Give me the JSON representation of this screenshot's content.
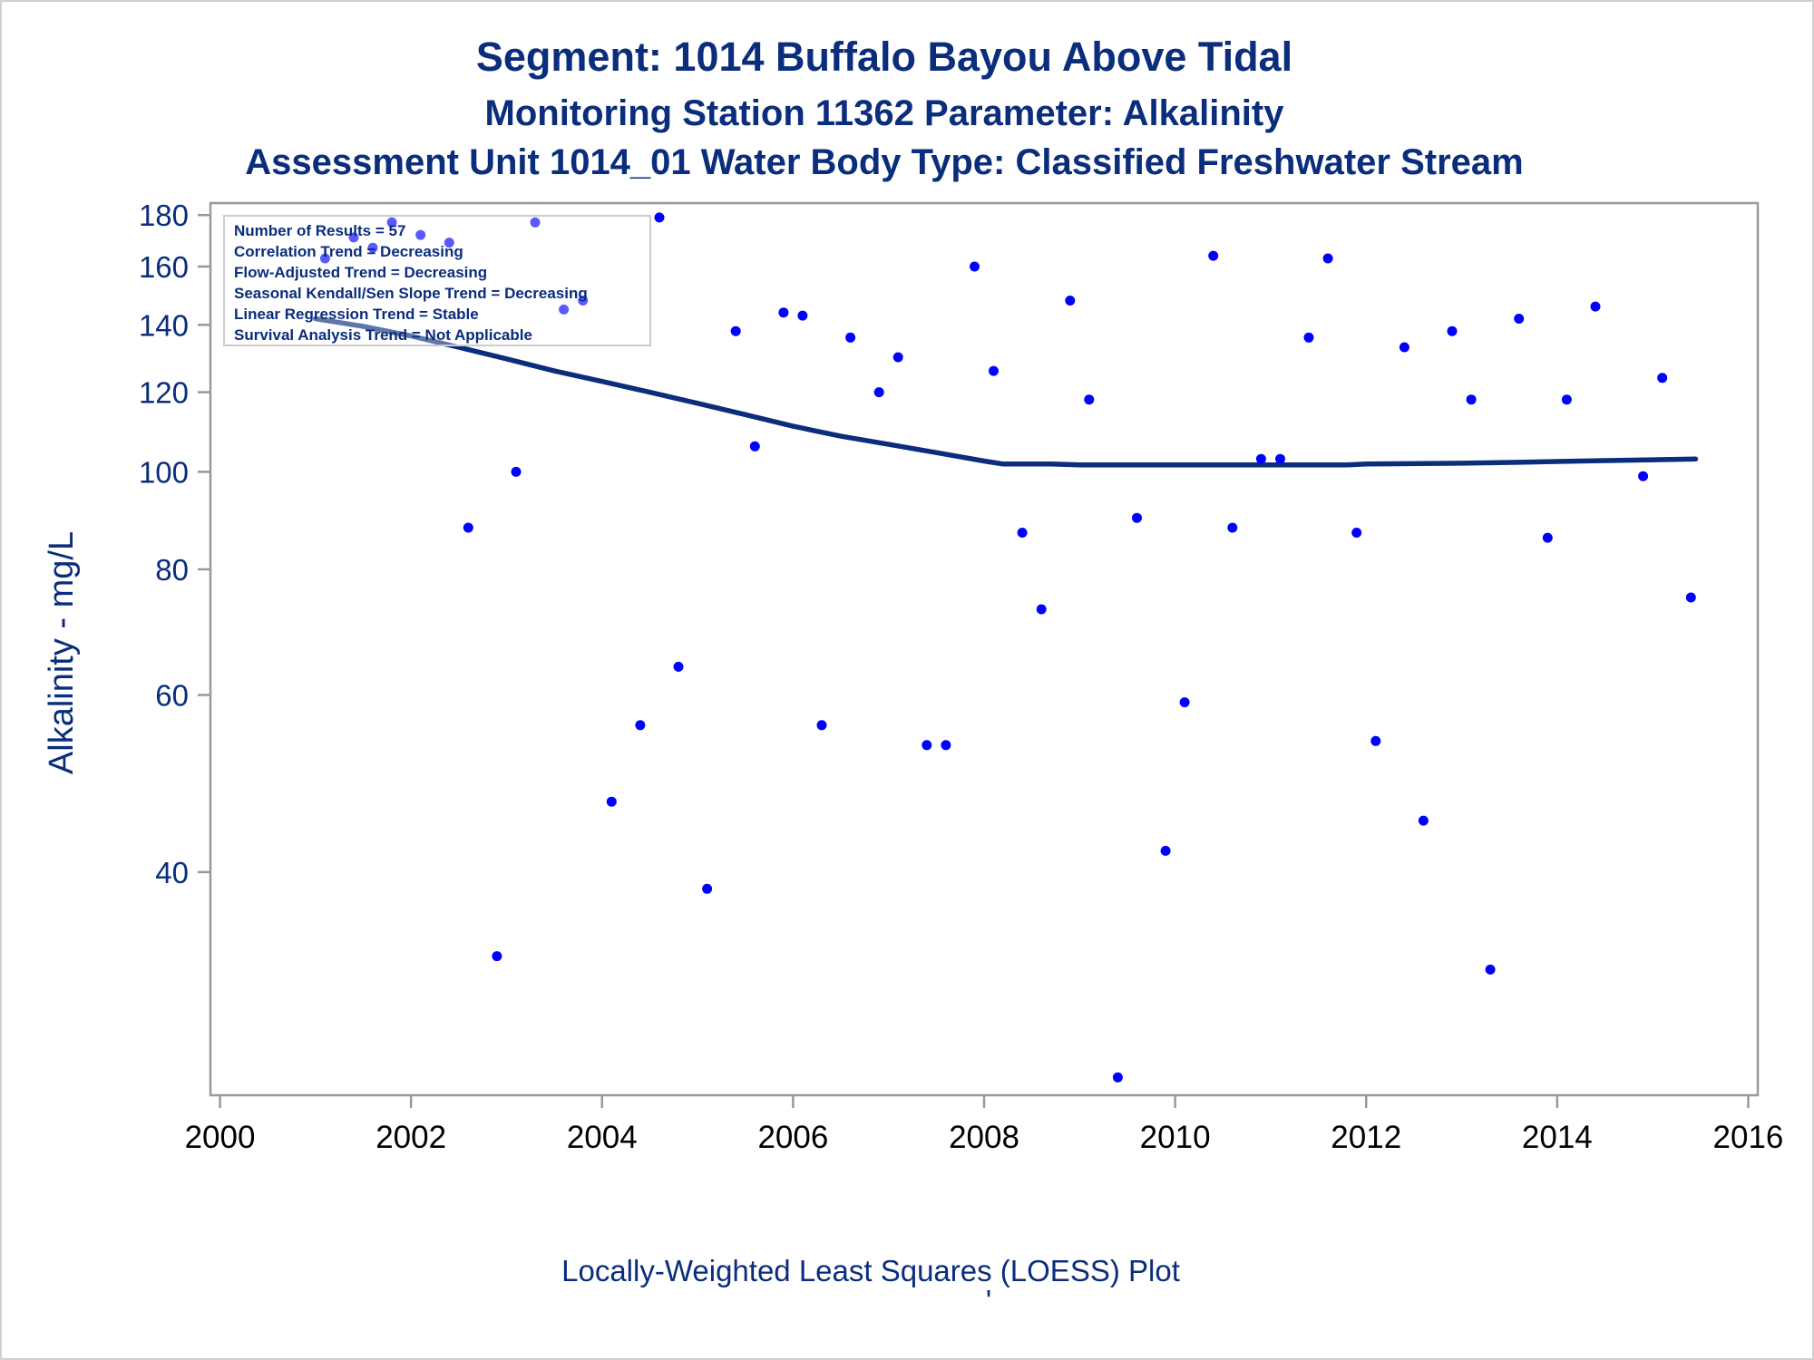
{
  "colors": {
    "title": "#0a2d7c",
    "marker": "#0000ff",
    "loess": "#0a2d7c",
    "frame": "#999999",
    "x_tick_text": "#000000"
  },
  "chart_data": {
    "type": "scatter",
    "title": "Segment: 1014  Buffalo Bayou Above Tidal",
    "subtitle": "Monitoring Station 11362 Parameter: Alkalinity",
    "subtitle2": "Assessment Unit 1014_01   Water Body Type: Classified Freshwater Stream",
    "ylabel": "Alkalinity - mg/L",
    "xlabel": "",
    "footnote": "Locally-Weighted Least Squares (LOESS) Plot",
    "footnote_mark": "'",
    "y_scale": "log",
    "ylim": [
      24,
      185
    ],
    "xlim": [
      1999.9,
      2016.1
    ],
    "y_ticks": [
      40,
      60,
      80,
      100,
      120,
      140,
      160,
      180
    ],
    "x_ticks": [
      2000,
      2002,
      2004,
      2006,
      2008,
      2010,
      2012,
      2014,
      2016
    ],
    "legend_placement": "top-left",
    "stats_box": [
      "Number of Results = 57",
      "Correlation Trend = Decreasing",
      "Flow-Adjusted Trend = Decreasing",
      "Seasonal Kendall/Sen Slope Trend = Decreasing",
      "Linear Regression Trend = Stable",
      "Survival Analysis Trend = Not Applicable"
    ],
    "series": [
      {
        "type": "scatter",
        "points": [
          [
            2001.1,
            163
          ],
          [
            2001.4,
            171
          ],
          [
            2001.6,
            167
          ],
          [
            2001.8,
            177
          ],
          [
            2002.1,
            172
          ],
          [
            2002.4,
            169
          ],
          [
            2002.6,
            88
          ],
          [
            2002.9,
            33
          ],
          [
            2003.1,
            100
          ],
          [
            2003.3,
            177
          ],
          [
            2003.6,
            145
          ],
          [
            2003.8,
            148
          ],
          [
            2004.1,
            47
          ],
          [
            2004.4,
            56
          ],
          [
            2004.6,
            179
          ],
          [
            2004.8,
            64
          ],
          [
            2005.1,
            38.5
          ],
          [
            2005.4,
            138
          ],
          [
            2005.6,
            106
          ],
          [
            2005.9,
            144
          ],
          [
            2006.1,
            143
          ],
          [
            2006.3,
            56
          ],
          [
            2006.6,
            136
          ],
          [
            2006.9,
            120
          ],
          [
            2007.1,
            130
          ],
          [
            2007.4,
            53.5
          ],
          [
            2007.6,
            53.5
          ],
          [
            2007.9,
            160
          ],
          [
            2008.1,
            126
          ],
          [
            2008.4,
            87
          ],
          [
            2008.6,
            73
          ],
          [
            2008.9,
            148
          ],
          [
            2009.1,
            118
          ],
          [
            2009.4,
            25
          ],
          [
            2009.6,
            90
          ],
          [
            2009.9,
            42
          ],
          [
            2010.1,
            59
          ],
          [
            2010.4,
            164
          ],
          [
            2010.6,
            88
          ],
          [
            2010.9,
            103
          ],
          [
            2011.1,
            103
          ],
          [
            2011.4,
            136
          ],
          [
            2011.6,
            163
          ],
          [
            2011.9,
            87
          ],
          [
            2012.1,
            54
          ],
          [
            2012.4,
            133
          ],
          [
            2012.6,
            45
          ],
          [
            2012.9,
            138
          ],
          [
            2013.1,
            118
          ],
          [
            2013.3,
            32
          ],
          [
            2013.6,
            142
          ],
          [
            2013.9,
            86
          ],
          [
            2014.1,
            118
          ],
          [
            2014.4,
            146
          ],
          [
            2014.9,
            99
          ],
          [
            2015.1,
            124
          ],
          [
            2015.4,
            75
          ]
        ]
      },
      {
        "type": "line",
        "points": [
          [
            2001.0,
            142
          ],
          [
            2001.5,
            139.5
          ],
          [
            2002.0,
            136.5
          ],
          [
            2002.5,
            133
          ],
          [
            2003.0,
            129.5
          ],
          [
            2003.5,
            126
          ],
          [
            2004.0,
            123
          ],
          [
            2004.5,
            120
          ],
          [
            2005.0,
            117
          ],
          [
            2005.5,
            114
          ],
          [
            2006.0,
            111
          ],
          [
            2006.5,
            108.5
          ],
          [
            2007.0,
            106.5
          ],
          [
            2007.5,
            104.5
          ],
          [
            2008.0,
            102.5
          ],
          [
            2008.2,
            101.8
          ],
          [
            2008.7,
            101.8
          ],
          [
            2009.0,
            101.6
          ],
          [
            2010.0,
            101.6
          ],
          [
            2011.0,
            101.6
          ],
          [
            2011.8,
            101.6
          ],
          [
            2012.0,
            101.8
          ],
          [
            2013.0,
            102
          ],
          [
            2013.6,
            102.2
          ],
          [
            2014.0,
            102.4
          ],
          [
            2014.5,
            102.6
          ],
          [
            2015.0,
            102.8
          ],
          [
            2015.45,
            103
          ]
        ]
      }
    ]
  }
}
